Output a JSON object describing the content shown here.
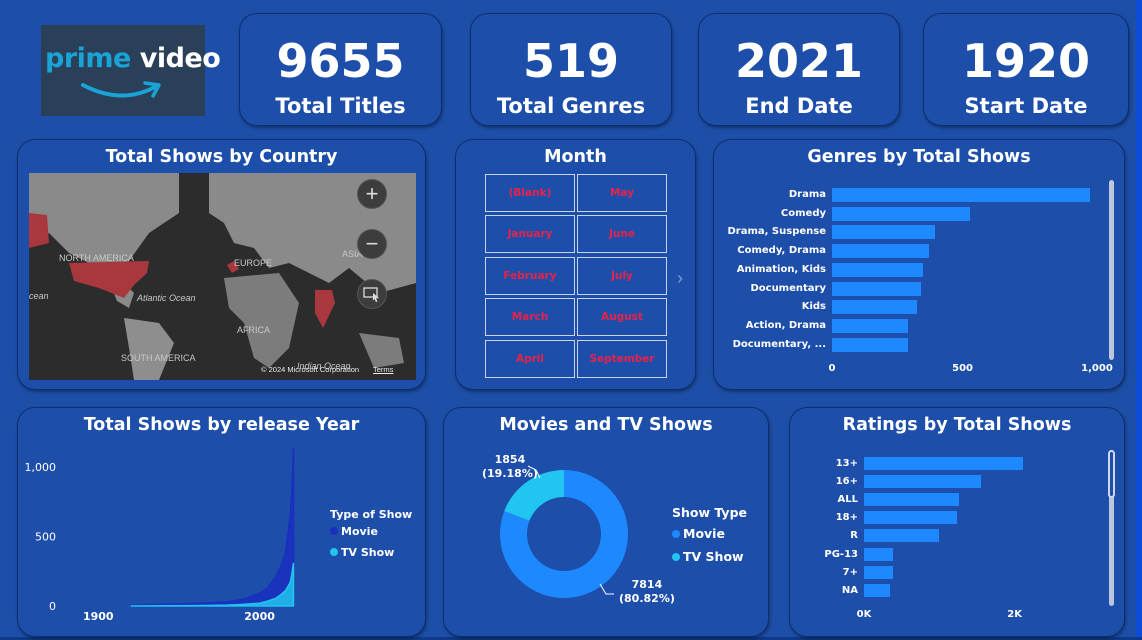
{
  "logo": {
    "text_part1": "prime",
    "text_part2": "video"
  },
  "kpis": [
    {
      "value": "9655",
      "label": "Total Titles"
    },
    {
      "value": "519",
      "label": "Total Genres"
    },
    {
      "value": "2021",
      "label": "End Date"
    },
    {
      "value": "1920",
      "label": "Start Date"
    }
  ],
  "map": {
    "title": "Total Shows by Country",
    "labels": [
      "NORTH AMERICA",
      "EUROPE",
      "ASIA",
      "Atlantic Ocean",
      "AFRICA",
      "SOUTH AMERICA",
      "Indian Ocean",
      "cean"
    ],
    "zoom_in": "+",
    "zoom_out": "−",
    "copyright": "© 2024 Microsoft Corporation",
    "terms": "Terms",
    "highlight_color": "#a8383e"
  },
  "month_slicer": {
    "title": "Month",
    "items": [
      "(Blank)",
      "May",
      "January",
      "June",
      "February",
      "July",
      "March",
      "August",
      "April",
      "September"
    ],
    "text_color": "#e8234a"
  },
  "genres": {
    "title": "Genres by Total Shows",
    "chart_data": {
      "type": "bar",
      "orientation": "horizontal",
      "categories": [
        "Drama",
        "Comedy",
        "Drama, Suspense",
        "Comedy, Drama",
        "Animation, Kids",
        "Documentary",
        "Kids",
        "Action, Drama",
        "Documentary, ..."
      ],
      "values": [
        986,
        530,
        394,
        370,
        348,
        341,
        326,
        291,
        291
      ],
      "xlim": [
        0,
        1030
      ],
      "ticks": [
        "0",
        "500",
        "1,000"
      ],
      "tick_values": [
        0,
        500,
        1000
      ],
      "color": "#1e88ff"
    }
  },
  "release_year": {
    "title": "Total Shows by release Year",
    "chart_data": {
      "type": "area",
      "x_ticks": [
        "1900",
        "2000"
      ],
      "x_tick_values": [
        1900,
        2000
      ],
      "xlim": [
        1880,
        2030
      ],
      "y_ticks": [
        "0",
        "500",
        "1,000"
      ],
      "y_tick_values": [
        0,
        500,
        1000
      ],
      "ylim": [
        0,
        1100
      ],
      "series": [
        {
          "name": "Movie",
          "color": "#1a2fc0",
          "x": [
            1920,
            1940,
            1960,
            1980,
            1990,
            2000,
            2005,
            2010,
            2013,
            2016,
            2018,
            2019,
            2020,
            2021
          ],
          "values": [
            5,
            12,
            18,
            30,
            50,
            90,
            130,
            210,
            280,
            380,
            560,
            650,
            820,
            1140
          ]
        },
        {
          "name": "TV Show",
          "color": "#22c4f0",
          "x": [
            1920,
            1940,
            1960,
            1980,
            1990,
            2000,
            2005,
            2010,
            2013,
            2016,
            2018,
            2019,
            2020,
            2021
          ],
          "values": [
            0,
            2,
            3,
            6,
            12,
            20,
            35,
            55,
            80,
            110,
            150,
            170,
            230,
            310
          ]
        }
      ]
    },
    "legend_title": "Type of Show"
  },
  "movies_tv": {
    "title": "Movies and TV Shows",
    "chart_data": {
      "type": "pie",
      "donut": true,
      "categories": [
        "Movie",
        "TV Show"
      ],
      "values": [
        7814,
        1854
      ],
      "percent_labels": [
        "(80.82%)",
        "(19.18%)"
      ],
      "value_labels": [
        "7814",
        "1854"
      ],
      "colors": [
        "#1e88ff",
        "#22c4f0"
      ]
    },
    "legend_title": "Show Type"
  },
  "ratings": {
    "title": "Ratings by Total Shows",
    "chart_data": {
      "type": "bar",
      "orientation": "horizontal",
      "categories": [
        "13+",
        "16+",
        "ALL",
        "18+",
        "R",
        "PG-13",
        "7+",
        "NA"
      ],
      "values": [
        2110,
        1550,
        1260,
        1240,
        1000,
        390,
        385,
        340
      ],
      "xlim": [
        0,
        3000
      ],
      "ticks": [
        "0K",
        "2K"
      ],
      "tick_values": [
        0,
        2000
      ],
      "color": "#1e88ff"
    }
  }
}
